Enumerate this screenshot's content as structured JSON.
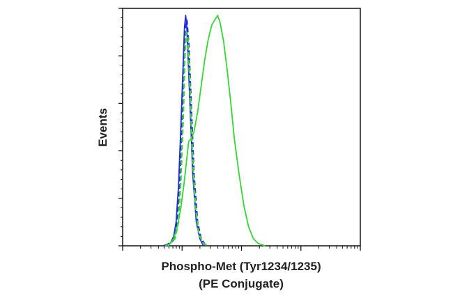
{
  "chart_data": {
    "type": "line",
    "title": "",
    "xlabel_lines": [
      "Phospho-Met (Tyr1234/1235)",
      "(PE Conjugate)"
    ],
    "ylabel": "Events",
    "x_scale": "log",
    "x_tick_labels": [],
    "y_tick_labels": [],
    "xlim": [
      0,
      1
    ],
    "ylim": [
      0,
      1
    ],
    "legend": "none",
    "grid": false,
    "series": [
      {
        "color": "#2a2ad8",
        "dash": "solid",
        "points": [
          [
            0.17,
            0.0
          ],
          [
            0.2,
            0.01
          ],
          [
            0.215,
            0.04
          ],
          [
            0.225,
            0.1
          ],
          [
            0.235,
            0.25
          ],
          [
            0.245,
            0.5
          ],
          [
            0.255,
            0.78
          ],
          [
            0.26,
            0.92
          ],
          [
            0.265,
            0.97
          ],
          [
            0.27,
            0.92
          ],
          [
            0.275,
            0.8
          ],
          [
            0.285,
            0.55
          ],
          [
            0.295,
            0.3
          ],
          [
            0.31,
            0.1
          ],
          [
            0.325,
            0.03
          ],
          [
            0.34,
            0.0
          ]
        ]
      },
      {
        "color": "#1f2fd6",
        "dash": "dashed",
        "points": [
          [
            0.18,
            0.0
          ],
          [
            0.21,
            0.02
          ],
          [
            0.225,
            0.08
          ],
          [
            0.24,
            0.25
          ],
          [
            0.25,
            0.55
          ],
          [
            0.258,
            0.8
          ],
          [
            0.265,
            0.93
          ],
          [
            0.27,
            0.95
          ],
          [
            0.278,
            0.85
          ],
          [
            0.288,
            0.6
          ],
          [
            0.3,
            0.3
          ],
          [
            0.315,
            0.1
          ],
          [
            0.33,
            0.03
          ],
          [
            0.35,
            0.0
          ]
        ]
      },
      {
        "color": "#3dd63d",
        "dash": "dashed",
        "points": [
          [
            0.19,
            0.0
          ],
          [
            0.22,
            0.03
          ],
          [
            0.235,
            0.1
          ],
          [
            0.245,
            0.28
          ],
          [
            0.255,
            0.55
          ],
          [
            0.262,
            0.8
          ],
          [
            0.268,
            0.9
          ],
          [
            0.274,
            0.88
          ],
          [
            0.282,
            0.7
          ],
          [
            0.292,
            0.42
          ],
          [
            0.305,
            0.18
          ],
          [
            0.32,
            0.05
          ],
          [
            0.34,
            0.01
          ],
          [
            0.36,
            0.0
          ]
        ]
      },
      {
        "color": "#33d633",
        "dash": "solid",
        "points": [
          [
            0.18,
            0.0
          ],
          [
            0.2,
            0.01
          ],
          [
            0.215,
            0.03
          ],
          [
            0.23,
            0.08
          ],
          [
            0.245,
            0.16
          ],
          [
            0.258,
            0.26
          ],
          [
            0.268,
            0.35
          ],
          [
            0.278,
            0.44
          ],
          [
            0.288,
            0.45
          ],
          [
            0.3,
            0.48
          ],
          [
            0.315,
            0.56
          ],
          [
            0.33,
            0.67
          ],
          [
            0.345,
            0.78
          ],
          [
            0.36,
            0.87
          ],
          [
            0.375,
            0.93
          ],
          [
            0.39,
            0.955
          ],
          [
            0.4,
            0.97
          ],
          [
            0.41,
            0.94
          ],
          [
            0.425,
            0.86
          ],
          [
            0.44,
            0.74
          ],
          [
            0.455,
            0.6
          ],
          [
            0.47,
            0.45
          ],
          [
            0.49,
            0.3
          ],
          [
            0.51,
            0.17
          ],
          [
            0.53,
            0.08
          ],
          [
            0.55,
            0.03
          ],
          [
            0.57,
            0.01
          ],
          [
            0.6,
            0.0
          ]
        ]
      }
    ]
  }
}
